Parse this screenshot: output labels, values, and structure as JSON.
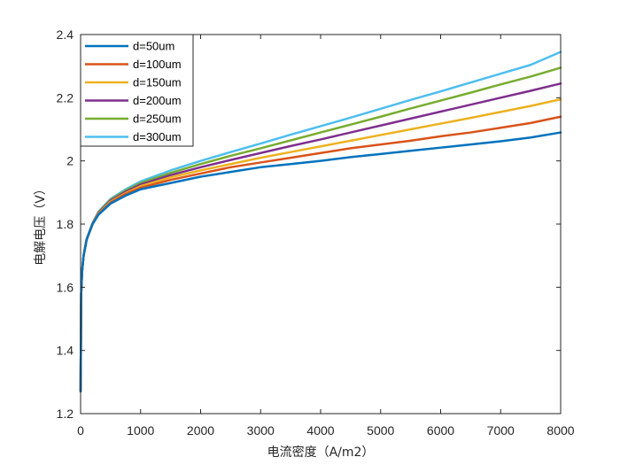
{
  "chart_data": {
    "type": "line",
    "title": "",
    "xlabel": "电流密度（A/m2）",
    "ylabel": "电解电压（V）",
    "xlim": [
      0,
      8000
    ],
    "ylim": [
      1.2,
      2.4
    ],
    "xticks": [
      0,
      1000,
      2000,
      3000,
      4000,
      5000,
      6000,
      7000,
      8000
    ],
    "yticks": [
      1.2,
      1.4,
      1.6,
      1.8,
      2.0,
      2.2,
      2.4
    ],
    "xtick_labels": [
      "0",
      "1000",
      "2000",
      "3000",
      "4000",
      "5000",
      "6000",
      "7000",
      "8000"
    ],
    "ytick_labels": [
      "1.2",
      "1.4",
      "1.6",
      "1.8",
      "2",
      "2.2",
      "2.4"
    ],
    "grid": false,
    "box": true,
    "legend_position": "top-left",
    "x": [
      0,
      10,
      25,
      50,
      100,
      200,
      300,
      500,
      750,
      1000,
      1500,
      2000,
      2500,
      3000,
      3500,
      4000,
      4500,
      5000,
      5500,
      6000,
      6500,
      7000,
      7500,
      8000
    ],
    "series": [
      {
        "name": "d=50um",
        "color": "#0072BD",
        "values": [
          1.27,
          1.58,
          1.65,
          1.7,
          1.75,
          1.8,
          1.83,
          1.865,
          1.89,
          1.91,
          1.93,
          1.95,
          1.965,
          1.98,
          1.99,
          2.0,
          2.012,
          2.022,
          2.032,
          2.042,
          2.052,
          2.062,
          2.074,
          2.09
        ]
      },
      {
        "name": "d=100um",
        "color": "#D95319",
        "values": [
          1.27,
          1.58,
          1.65,
          1.7,
          1.75,
          1.8,
          1.832,
          1.868,
          1.895,
          1.915,
          1.94,
          1.96,
          1.98,
          1.995,
          2.01,
          2.025,
          2.04,
          2.052,
          2.064,
          2.078,
          2.09,
          2.105,
          2.12,
          2.14
        ]
      },
      {
        "name": "d=150um",
        "color": "#EDB120",
        "values": [
          1.27,
          1.58,
          1.65,
          1.7,
          1.751,
          1.801,
          1.834,
          1.871,
          1.898,
          1.92,
          1.948,
          1.97,
          1.99,
          2.01,
          2.028,
          2.046,
          2.064,
          2.082,
          2.1,
          2.118,
          2.136,
          2.155,
          2.174,
          2.195
        ]
      },
      {
        "name": "d=200um",
        "color": "#7E2F8E",
        "values": [
          1.27,
          1.58,
          1.65,
          1.7,
          1.752,
          1.802,
          1.836,
          1.874,
          1.902,
          1.925,
          1.955,
          1.98,
          2.003,
          2.025,
          2.047,
          2.068,
          2.09,
          2.112,
          2.134,
          2.156,
          2.178,
          2.2,
          2.222,
          2.245
        ]
      },
      {
        "name": "d=250um",
        "color": "#77AC30",
        "values": [
          1.27,
          1.58,
          1.65,
          1.7,
          1.752,
          1.803,
          1.838,
          1.877,
          1.906,
          1.93,
          1.962,
          1.99,
          2.016,
          2.04,
          2.065,
          2.09,
          2.115,
          2.14,
          2.166,
          2.191,
          2.216,
          2.242,
          2.267,
          2.295
        ]
      },
      {
        "name": "d=300um",
        "color": "#4DBEEE",
        "values": [
          1.27,
          1.58,
          1.65,
          1.7,
          1.753,
          1.804,
          1.84,
          1.88,
          1.91,
          1.935,
          1.97,
          2.0,
          2.028,
          2.055,
          2.083,
          2.11,
          2.137,
          2.165,
          2.193,
          2.22,
          2.248,
          2.276,
          2.304,
          2.345
        ]
      }
    ]
  }
}
